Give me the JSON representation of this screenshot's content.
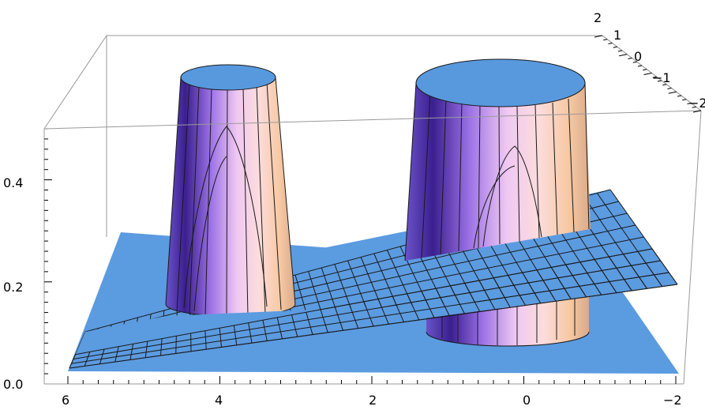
{
  "chart_data": {
    "type": "surface3d",
    "title": "",
    "xlabel": "",
    "ylabel": "",
    "zlabel": "",
    "x_ticks": [
      "6",
      "4",
      "2",
      "0",
      "−2"
    ],
    "y_ticks": [
      "2",
      "1",
      "0",
      "−1",
      "−2"
    ],
    "z_ticks": [
      "0.0",
      "0.2",
      "0.4"
    ],
    "x_range": [
      -2,
      6
    ],
    "y_range": [
      -2,
      2
    ],
    "z_range": [
      0,
      0.5
    ],
    "box": true,
    "surfaces": [
      {
        "kind": "cylinder",
        "center_x": 4,
        "center_y": 0,
        "height": 0.5
      },
      {
        "kind": "cylinder",
        "center_x": 0,
        "center_y": 0,
        "height": 0.5
      },
      {
        "kind": "plane",
        "description_values": {
          "z_at_x6": 0.05,
          "z_at_x_neg2": 0.2
        }
      }
    ],
    "colors": {
      "surface_top": "#5899de",
      "plane": "#5b9be0",
      "grid": "#1a1a1a",
      "box": "#9a9a9a",
      "gradient": [
        "#4a2c9c",
        "#8c5ee0",
        "#e8bff0",
        "#fbd6d8",
        "#f6c8a0"
      ]
    }
  }
}
